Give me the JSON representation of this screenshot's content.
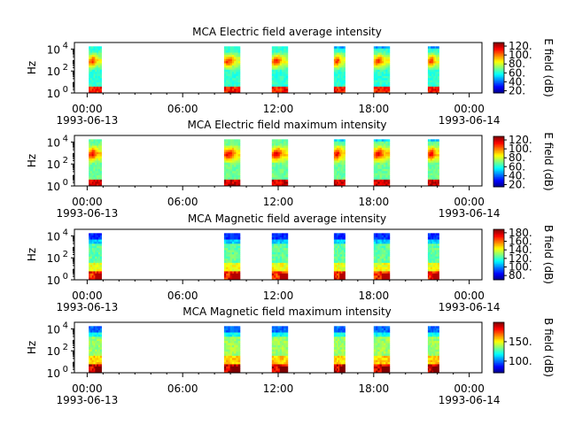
{
  "chart_data": [
    {
      "type": "heatmap",
      "title": "MCA  Electric field average intensity",
      "ylabel": "Hz",
      "yticks": [
        {
          "base": "10",
          "exp": "0"
        },
        {
          "base": "10",
          "exp": "2"
        },
        {
          "base": "10",
          "exp": "4"
        }
      ],
      "ylim_log10": [
        0,
        4.6
      ],
      "colorbar": {
        "label": "E field (dB)",
        "min": 15,
        "max": 128,
        "ticks": [
          "20.",
          "40.",
          "60.",
          "80.",
          "100.",
          "120."
        ],
        "tick_values": [
          20,
          40,
          60,
          80,
          100,
          120
        ]
      },
      "data_blocks_hours": [
        [
          0.1,
          0.9
        ],
        [
          8.6,
          9.6
        ],
        [
          11.6,
          12.6
        ],
        [
          15.5,
          16.2
        ],
        [
          18.0,
          19.0
        ],
        [
          21.4,
          22.1
        ]
      ]
    },
    {
      "type": "heatmap",
      "title": "MCA  Electric field maximum intensity",
      "ylabel": "Hz",
      "yticks": [
        {
          "base": "10",
          "exp": "0"
        },
        {
          "base": "10",
          "exp": "2"
        },
        {
          "base": "10",
          "exp": "4"
        }
      ],
      "ylim_log10": [
        0,
        4.6
      ],
      "colorbar": {
        "label": "E field (dB)",
        "min": 15,
        "max": 128,
        "ticks": [
          "20.",
          "40.",
          "60.",
          "80.",
          "100.",
          "120."
        ],
        "tick_values": [
          20,
          40,
          60,
          80,
          100,
          120
        ]
      },
      "data_blocks_hours": [
        [
          0.1,
          0.9
        ],
        [
          8.6,
          9.6
        ],
        [
          11.6,
          12.6
        ],
        [
          15.5,
          16.2
        ],
        [
          18.0,
          19.0
        ],
        [
          21.4,
          22.1
        ]
      ]
    },
    {
      "type": "heatmap",
      "title": "MCA  Magnetic field average intensity",
      "ylabel": "Hz",
      "yticks": [
        {
          "base": "10",
          "exp": "0"
        },
        {
          "base": "10",
          "exp": "2"
        },
        {
          "base": "10",
          "exp": "4"
        }
      ],
      "ylim_log10": [
        0,
        4.6
      ],
      "colorbar": {
        "label": "B field (dB)",
        "min": 70,
        "max": 188,
        "ticks": [
          "80.",
          "100.",
          "120.",
          "140.",
          "160.",
          "180."
        ],
        "tick_values": [
          80,
          100,
          120,
          140,
          160,
          180
        ]
      },
      "data_blocks_hours": [
        [
          0.1,
          0.9
        ],
        [
          8.6,
          9.6
        ],
        [
          11.6,
          12.6
        ],
        [
          15.5,
          16.2
        ],
        [
          18.0,
          19.0
        ],
        [
          21.4,
          22.1
        ]
      ]
    },
    {
      "type": "heatmap",
      "title": "MCA  Magnetic field maximum intensity",
      "ylabel": "Hz",
      "yticks": [
        {
          "base": "10",
          "exp": "0"
        },
        {
          "base": "10",
          "exp": "2"
        },
        {
          "base": "10",
          "exp": "4"
        }
      ],
      "ylim_log10": [
        0,
        4.6
      ],
      "colorbar": {
        "label": "B field (dB)",
        "min": 70,
        "max": 200,
        "ticks": [
          "100.",
          "150."
        ],
        "tick_values": [
          100,
          150
        ]
      },
      "data_blocks_hours": [
        [
          0.1,
          0.9
        ],
        [
          8.6,
          9.6
        ],
        [
          11.6,
          12.6
        ],
        [
          15.5,
          16.2
        ],
        [
          18.0,
          19.0
        ],
        [
          21.4,
          22.1
        ]
      ]
    }
  ],
  "x_axis": {
    "range_hours": [
      -0.8,
      24.8
    ],
    "ticks": [
      "00:00",
      "06:00",
      "12:00",
      "18:00",
      "00:00"
    ],
    "tick_hours": [
      0,
      6,
      12,
      18,
      24
    ],
    "minor_step_hours": 1,
    "start_date": "1993-06-13",
    "end_date": "1993-06-14"
  },
  "colors": {
    "colormap": "jet",
    "empty_background": "#ffffff",
    "axis": "#000000"
  }
}
